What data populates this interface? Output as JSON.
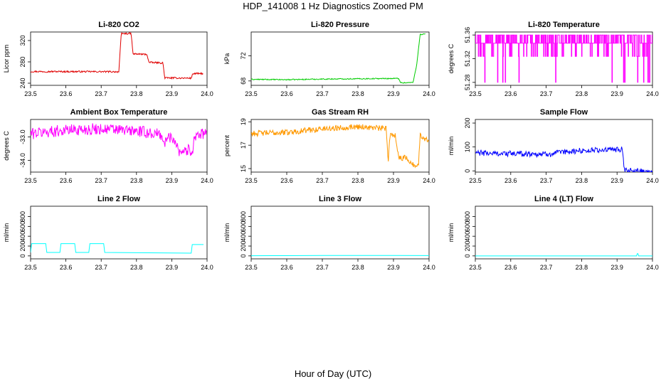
{
  "figure": {
    "title": "HDP_141008  1 Hz Diagnostics Zoomed PM",
    "xlabel": "Hour of Day (UTC)"
  },
  "chart_data": [
    {
      "type": "line",
      "title": "Li-820 CO2",
      "ylabel": "Licor ppm",
      "color": "#e00000",
      "xlim": [
        23.5,
        24.0
      ],
      "ylim": [
        236,
        336
      ],
      "xticks": [
        "23.5",
        "23.6",
        "23.7",
        "23.8",
        "23.9",
        "24.0"
      ],
      "yticks": [
        {
          "v": 240,
          "label": "240"
        },
        {
          "v": 280,
          "label": "280"
        },
        {
          "v": 320,
          "label": "320"
        }
      ],
      "noise": 1.5,
      "x": [
        23.5,
        23.75,
        23.757,
        23.785,
        23.79,
        23.83,
        23.835,
        23.875,
        23.88,
        23.955,
        23.96,
        23.99
      ],
      "y": [
        262,
        261.5,
        333,
        333,
        295,
        294,
        279,
        278,
        250,
        249.5,
        258,
        258
      ]
    },
    {
      "type": "line",
      "title": "Li-820 Pressure",
      "ylabel": "kPa",
      "color": "#00cc00",
      "xlim": [
        23.5,
        24.0
      ],
      "ylim": [
        67.3,
        75.8
      ],
      "xticks": [
        "23.5",
        "23.6",
        "23.7",
        "23.8",
        "23.9",
        "24.0"
      ],
      "yticks": [
        {
          "v": 68,
          "label": "68"
        },
        {
          "v": 72,
          "label": "72"
        }
      ],
      "noise": 0.08,
      "x": [
        23.5,
        23.6,
        23.7,
        23.8,
        23.915,
        23.92,
        23.955,
        23.965,
        23.975,
        23.99
      ],
      "y": [
        68.25,
        68.2,
        68.3,
        68.35,
        68.4,
        67.7,
        67.75,
        70.5,
        75.4,
        75.5
      ]
    },
    {
      "type": "line",
      "title": "Li-820 Temperature",
      "ylabel": "degrees C",
      "color": "#ff00ff",
      "xlim": [
        23.5,
        24.0
      ],
      "ylim": [
        51.275,
        51.365
      ],
      "xticks": [
        "23.5",
        "23.6",
        "23.7",
        "23.8",
        "23.9",
        "24.0"
      ],
      "yticks": [
        {
          "v": 51.28,
          "label": "51.28"
        },
        {
          "v": 51.32,
          "label": "51.32"
        },
        {
          "v": 51.36,
          "label": "51.36"
        }
      ],
      "pattern": "quantized",
      "levels": [
        51.28,
        51.302,
        51.324,
        51.346,
        51.36
      ],
      "x": [
        23.5,
        24.0
      ]
    },
    {
      "type": "line",
      "title": "Ambient Box Temperature",
      "ylabel": "degrees C",
      "color": "#ff00ff",
      "xlim": [
        23.5,
        24.0
      ],
      "ylim": [
        -34.5,
        -32.25
      ],
      "xticks": [
        "23.5",
        "23.6",
        "23.7",
        "23.8",
        "23.9",
        "24.0"
      ],
      "yticks": [
        {
          "v": -34.0,
          "label": "-34.0"
        },
        {
          "v": -33.0,
          "label": "-33.0"
        }
      ],
      "noise": 0.25,
      "x": [
        23.5,
        23.6,
        23.7,
        23.8,
        23.87,
        23.88,
        23.89,
        23.91,
        23.92,
        23.96,
        23.965,
        24.0
      ],
      "y": [
        -32.85,
        -32.7,
        -32.65,
        -32.75,
        -32.9,
        -33.3,
        -33.0,
        -33.1,
        -33.6,
        -33.55,
        -32.9,
        -32.9
      ]
    },
    {
      "type": "line",
      "title": "Gas Stream RH",
      "ylabel": "percent",
      "color": "#ff9900",
      "xlim": [
        23.5,
        24.0
      ],
      "ylim": [
        14.7,
        19.2
      ],
      "xticks": [
        "23.5",
        "23.6",
        "23.7",
        "23.8",
        "23.9",
        "24.0"
      ],
      "yticks": [
        {
          "v": 15,
          "label": "15"
        },
        {
          "v": 17,
          "label": "17"
        },
        {
          "v": 19,
          "label": "19"
        }
      ],
      "noise": 0.25,
      "x": [
        23.5,
        23.6,
        23.7,
        23.8,
        23.88,
        23.885,
        23.89,
        23.905,
        23.915,
        23.94,
        23.95,
        23.97,
        23.975,
        24.0
      ],
      "y": [
        18.0,
        18.1,
        18.4,
        18.6,
        18.4,
        15.5,
        17.9,
        17.9,
        15.9,
        15.9,
        15.4,
        15.2,
        17.8,
        17.4
      ]
    },
    {
      "type": "line",
      "title": "Sample Flow",
      "ylabel": "ml/min",
      "color": "#0000ff",
      "xlim": [
        23.5,
        24.0
      ],
      "ylim": [
        -5,
        215
      ],
      "xticks": [
        "23.5",
        "23.6",
        "23.7",
        "23.8",
        "23.9",
        "24.0"
      ],
      "yticks": [
        {
          "v": 0,
          "label": "0"
        },
        {
          "v": 100,
          "label": "100"
        },
        {
          "v": 200,
          "label": "200"
        }
      ],
      "noise": 12,
      "x": [
        23.5,
        23.6,
        23.7,
        23.8,
        23.915,
        23.92,
        24.0
      ],
      "y": [
        75,
        72,
        70,
        85,
        90,
        0,
        0
      ]
    },
    {
      "type": "line",
      "title": "Line 2 Flow",
      "ylabel": "ml/min",
      "color": "#00ffff",
      "xlim": [
        23.5,
        24.0
      ],
      "ylim": [
        -60,
        1010
      ],
      "xticks": [
        "23.5",
        "23.6",
        "23.7",
        "23.8",
        "23.9",
        "24.0"
      ],
      "yticks": [
        {
          "v": 0,
          "label": "0"
        },
        {
          "v": 200,
          "label": "200"
        },
        {
          "v": 400,
          "label": "400"
        },
        {
          "v": 600,
          "label": "600"
        },
        {
          "v": 800,
          "label": "800"
        }
      ],
      "noise": 0,
      "x": [
        23.5,
        23.503,
        23.543,
        23.546,
        23.583,
        23.586,
        23.625,
        23.628,
        23.665,
        23.668,
        23.707,
        23.71,
        23.955,
        23.958,
        23.99
      ],
      "y": [
        70,
        250,
        250,
        70,
        70,
        250,
        250,
        70,
        70,
        250,
        250,
        70,
        55,
        230,
        230
      ]
    },
    {
      "type": "line",
      "title": "Line 3 Flow",
      "ylabel": "ml/min",
      "color": "#00ffff",
      "xlim": [
        23.5,
        24.0
      ],
      "ylim": [
        -60,
        1010
      ],
      "xticks": [
        "23.5",
        "23.6",
        "23.7",
        "23.8",
        "23.9",
        "24.0"
      ],
      "yticks": [
        {
          "v": 0,
          "label": "0"
        },
        {
          "v": 200,
          "label": "200"
        },
        {
          "v": 400,
          "label": "400"
        },
        {
          "v": 600,
          "label": "600"
        },
        {
          "v": 800,
          "label": "800"
        }
      ],
      "noise": 0,
      "x": [
        23.5,
        23.6,
        23.7,
        23.8,
        23.9,
        24.0
      ],
      "y": [
        3,
        5,
        8,
        8,
        8,
        6
      ]
    },
    {
      "type": "line",
      "title": "Line 4 (LT) Flow",
      "ylabel": "ml/min",
      "color": "#00ffff",
      "xlim": [
        23.5,
        24.0
      ],
      "ylim": [
        -60,
        1010
      ],
      "xticks": [
        "23.5",
        "23.6",
        "23.7",
        "23.8",
        "23.9",
        "24.0"
      ],
      "yticks": [
        {
          "v": 0,
          "label": "0"
        },
        {
          "v": 200,
          "label": "200"
        },
        {
          "v": 400,
          "label": "400"
        },
        {
          "v": 600,
          "label": "600"
        },
        {
          "v": 800,
          "label": "800"
        }
      ],
      "noise": 0,
      "x": [
        23.5,
        23.955,
        23.957,
        23.959,
        23.961,
        24.0
      ],
      "y": [
        0,
        0,
        45,
        45,
        0,
        0
      ]
    }
  ]
}
